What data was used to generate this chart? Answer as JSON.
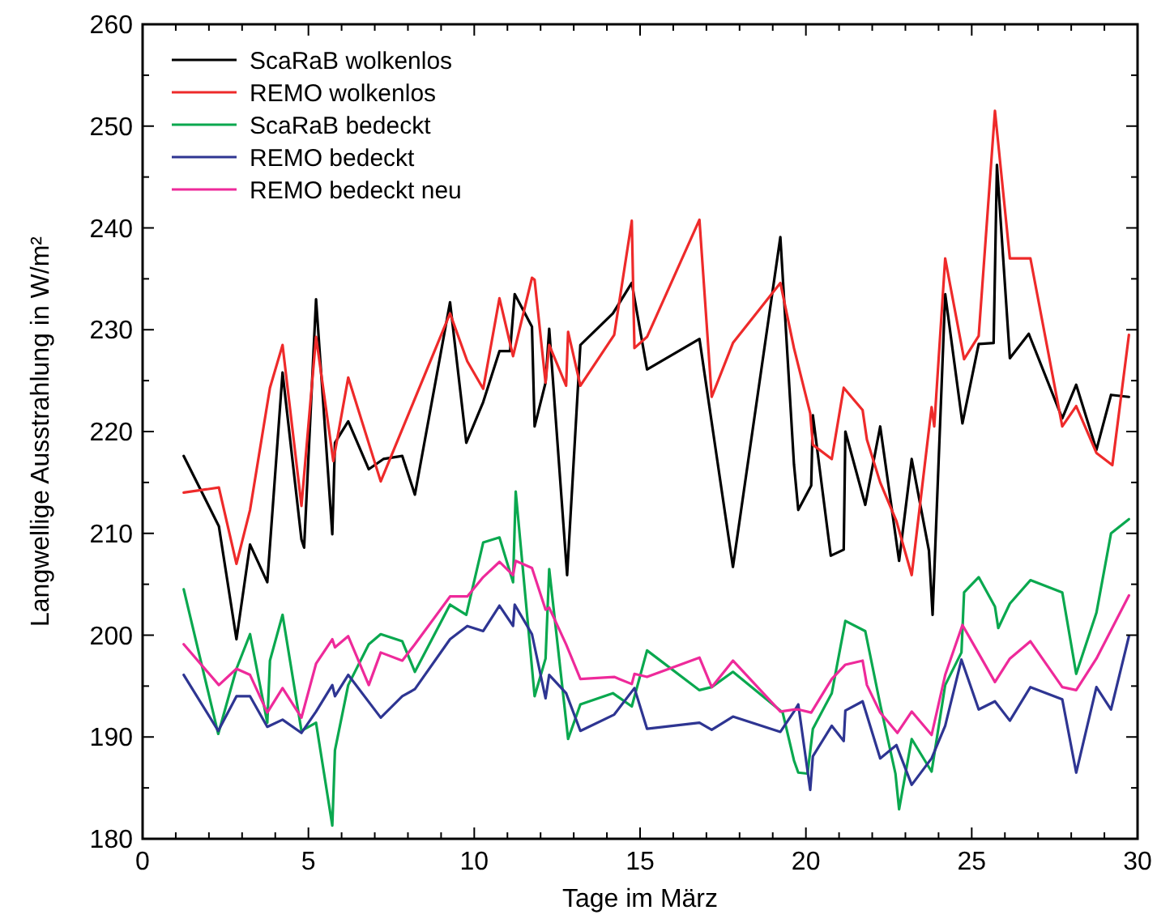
{
  "chart_data": {
    "type": "line",
    "xlabel": "Tage im März",
    "ylabel": "Langwellige Ausstrahlung in W/m²",
    "xlim": [
      0,
      30
    ],
    "ylim": [
      180,
      260
    ],
    "xticks": [
      0,
      {
        "value": 1,
        "label": null
      },
      {
        "value": 2,
        "label": null
      },
      {
        "value": 3,
        "label": null
      },
      {
        "value": 4,
        "label": null
      },
      5,
      {
        "value": 6,
        "label": null
      },
      {
        "value": 7,
        "label": null
      },
      {
        "value": 8,
        "label": null
      },
      {
        "value": 9,
        "label": null
      },
      10,
      {
        "value": 11,
        "label": null
      },
      {
        "value": 12,
        "label": null
      },
      {
        "value": 13,
        "label": null
      },
      {
        "value": 14,
        "label": null
      },
      15,
      {
        "value": 16,
        "label": null
      },
      {
        "value": 17,
        "label": null
      },
      {
        "value": 18,
        "label": null
      },
      {
        "value": 19,
        "label": null
      },
      20,
      {
        "value": 21,
        "label": null
      },
      {
        "value": 22,
        "label": null
      },
      {
        "value": 23,
        "label": null
      },
      {
        "value": 24,
        "label": null
      },
      25,
      {
        "value": 26,
        "label": null
      },
      {
        "value": 27,
        "label": null
      },
      {
        "value": 28,
        "label": null
      },
      {
        "value": 29,
        "label": null
      },
      30
    ],
    "yticks": [
      180,
      {
        "value": 185,
        "label": null
      },
      190,
      {
        "value": 195,
        "label": null
      },
      200,
      {
        "value": 205,
        "label": null
      },
      210,
      {
        "value": 215,
        "label": null
      },
      220,
      {
        "value": 225,
        "label": null
      },
      230,
      {
        "value": 235,
        "label": null
      },
      240,
      {
        "value": 245,
        "label": null
      },
      250,
      {
        "value": 255,
        "label": null
      },
      260
    ],
    "grid": false,
    "legend": "top left",
    "marker": "none",
    "line_style": "solid",
    "series": [
      {
        "name": "ScaRaB wolkenlos",
        "color": "#000000",
        "x": [
          1.24,
          2.3,
          2.83,
          3.24,
          3.76,
          4.22,
          4.79,
          4.87,
          5.23,
          5.72,
          5.8,
          6.2,
          6.82,
          7.26,
          7.83,
          8.21,
          9.27,
          9.76,
          10.27,
          10.76,
          11.08,
          11.22,
          11.74,
          11.82,
          12.15,
          12.26,
          12.8,
          13.2,
          14.18,
          14.75,
          15.21,
          16.79,
          17.8,
          19.23,
          19.64,
          19.77,
          20.16,
          20.21,
          20.75,
          21.14,
          21.19,
          21.79,
          22.24,
          22.81,
          23.19,
          23.71,
          23.82,
          24.2,
          24.72,
          25.21,
          25.66,
          25.76,
          26.15,
          26.72,
          27.73,
          28.15,
          28.76,
          29.2,
          29.74
        ],
        "values": [
          217.6,
          210.7,
          199.6,
          208.9,
          205.2,
          225.8,
          209.4,
          208.6,
          233,
          209.9,
          218.9,
          221,
          216.3,
          217.3,
          217.6,
          213.8,
          232.7,
          218.9,
          222.9,
          227.9,
          227.9,
          233.5,
          230.3,
          220.5,
          224.8,
          230.1,
          205.9,
          228.5,
          231.6,
          234.6,
          226.1,
          229.1,
          206.7,
          239.1,
          216.8,
          212.3,
          214.7,
          221.6,
          207.8,
          208.4,
          220,
          212.8,
          220.5,
          207.3,
          217.3,
          208.3,
          202,
          233.5,
          220.8,
          228.6,
          228.7,
          246.2,
          227.2,
          229.6,
          221.3,
          224.6,
          218.2,
          223.6,
          223.4
        ]
      },
      {
        "name": "REMO wolkenlos",
        "color": "#ee2a2a",
        "x": [
          1.24,
          2.3,
          2.83,
          3.24,
          3.84,
          4.22,
          4.79,
          5.23,
          5.75,
          6.2,
          7.18,
          9.27,
          9.79,
          10.27,
          10.76,
          11.17,
          11.74,
          11.82,
          12.15,
          12.26,
          12.77,
          12.83,
          13.2,
          14.22,
          14.75,
          14.83,
          15.21,
          16.79,
          17.16,
          17.8,
          19.23,
          19.64,
          20.13,
          20.21,
          20.78,
          21.14,
          21.71,
          21.84,
          22.24,
          22.73,
          23.19,
          23.79,
          23.87,
          24.2,
          24.77,
          25.21,
          25.7,
          26.15,
          26.77,
          27.73,
          28.15,
          28.76,
          29.24,
          29.74
        ],
        "values": [
          214,
          214.5,
          207,
          212.3,
          224.3,
          228.5,
          212.7,
          229.3,
          217.1,
          225.3,
          215.1,
          231.6,
          226.9,
          224.2,
          233.1,
          227.4,
          235.1,
          234.9,
          224.8,
          228.5,
          224.5,
          229.8,
          224.5,
          229.5,
          240.7,
          228.2,
          229.3,
          240.8,
          223.4,
          228.7,
          234.6,
          228.2,
          221.8,
          218.7,
          217.3,
          224.3,
          222.1,
          219.2,
          215,
          211.2,
          205.9,
          222.4,
          220.5,
          237,
          227.1,
          229.4,
          251.5,
          237,
          237,
          220.5,
          222.5,
          217.9,
          216.7,
          229.5
        ]
      },
      {
        "name": "ScaRaB bedeckt",
        "color": "#0aa84f",
        "x": [
          1.24,
          2.28,
          2.83,
          3.24,
          3.76,
          3.84,
          4.22,
          4.79,
          5.23,
          5.72,
          5.8,
          6.2,
          6.82,
          7.18,
          7.83,
          8.21,
          9.27,
          9.76,
          10.27,
          10.76,
          11.17,
          11.25,
          11.82,
          12.15,
          12.26,
          12.83,
          13.2,
          14.18,
          14.75,
          15.21,
          16.79,
          17.16,
          17.8,
          19.3,
          19.64,
          19.77,
          20.05,
          20.21,
          20.78,
          21.19,
          21.79,
          22.24,
          22.7,
          22.81,
          23.19,
          23.79,
          24.2,
          24.69,
          24.77,
          25.21,
          25.7,
          25.8,
          26.15,
          26.77,
          27.73,
          28.15,
          28.76,
          29.2,
          29.74
        ],
        "values": [
          204.5,
          190.3,
          196.7,
          200.1,
          191.4,
          197.5,
          202,
          190.6,
          191.4,
          181.3,
          188.7,
          195.1,
          199.1,
          200.1,
          199.4,
          196.4,
          203,
          202,
          209.1,
          209.6,
          205.2,
          214.1,
          194,
          197.7,
          206.5,
          189.8,
          193.2,
          194.3,
          193,
          198.5,
          194.6,
          194.9,
          196.4,
          192.4,
          187.7,
          186.5,
          186.4,
          190.8,
          194.3,
          201.4,
          200.4,
          193.2,
          186.4,
          182.9,
          189.8,
          186.6,
          195.1,
          198.3,
          204.2,
          205.7,
          202.8,
          200.7,
          203.1,
          205.4,
          204.2,
          196.2,
          202.2,
          210,
          211.4
        ]
      },
      {
        "name": "REMO bedeckt",
        "color": "#2e3592",
        "x": [
          1.24,
          2.28,
          2.83,
          3.24,
          3.76,
          4.22,
          4.79,
          5.23,
          5.72,
          5.8,
          6.2,
          7.18,
          7.83,
          8.21,
          9.27,
          9.79,
          10.27,
          10.76,
          11.17,
          11.22,
          11.74,
          12.15,
          12.26,
          12.77,
          13.2,
          14.22,
          14.83,
          15.21,
          16.79,
          17.16,
          17.8,
          19.23,
          19.64,
          19.77,
          20.13,
          20.21,
          20.78,
          21.14,
          21.19,
          21.71,
          22.24,
          22.73,
          23.19,
          23.79,
          24.2,
          24.69,
          25.21,
          25.7,
          26.15,
          26.77,
          27.73,
          28.15,
          28.76,
          29.2,
          29.74
        ],
        "values": [
          196.1,
          190.6,
          194,
          194,
          191,
          191.7,
          190.4,
          192.5,
          195.1,
          194,
          196.1,
          191.9,
          194,
          194.7,
          199.6,
          200.9,
          200.4,
          202.9,
          200.9,
          203,
          200.1,
          193.8,
          196.1,
          194.3,
          190.6,
          192.2,
          194.8,
          190.8,
          191.4,
          190.7,
          192,
          190.5,
          192.5,
          193.2,
          184.8,
          188.1,
          191.1,
          189.6,
          192.6,
          193.5,
          187.9,
          189.2,
          185.3,
          187.9,
          191.1,
          197.6,
          192.7,
          193.5,
          191.6,
          194.9,
          193.7,
          186.5,
          194.9,
          192.7,
          199.9
        ]
      },
      {
        "name": "REMO bedeckt neu",
        "color": "#ee2a9a",
        "x": [
          1.24,
          2.3,
          2.83,
          3.24,
          3.76,
          4.22,
          4.79,
          5.23,
          5.72,
          5.8,
          6.2,
          6.82,
          7.18,
          7.83,
          8.21,
          9.27,
          9.79,
          10.27,
          10.76,
          11.17,
          11.25,
          11.74,
          12.15,
          12.26,
          12.77,
          13.2,
          14.22,
          14.75,
          14.83,
          15.21,
          16.79,
          17.16,
          17.8,
          19.23,
          19.64,
          19.77,
          20.16,
          20.78,
          21.19,
          21.71,
          21.84,
          22.24,
          22.76,
          23.19,
          23.79,
          24.2,
          24.72,
          25.21,
          25.7,
          26.15,
          26.77,
          27.73,
          28.15,
          28.76,
          29.74
        ],
        "values": [
          199.1,
          195.1,
          196.7,
          196.1,
          192.4,
          194.8,
          191.9,
          197.2,
          199.6,
          198.8,
          199.9,
          195.1,
          198.3,
          197.5,
          199.1,
          203.8,
          203.8,
          205.7,
          207.2,
          205.9,
          207.3,
          206.6,
          202.5,
          202.7,
          199.1,
          195.7,
          195.9,
          195.2,
          196.2,
          195.9,
          197.8,
          194.9,
          197.5,
          192.5,
          192.7,
          192.7,
          192.4,
          195.7,
          197.1,
          197.5,
          195.1,
          192.4,
          190.4,
          192.5,
          190.2,
          196.1,
          201,
          198.2,
          195.4,
          197.7,
          199.4,
          194.9,
          194.6,
          197.7,
          203.9
        ]
      }
    ]
  }
}
